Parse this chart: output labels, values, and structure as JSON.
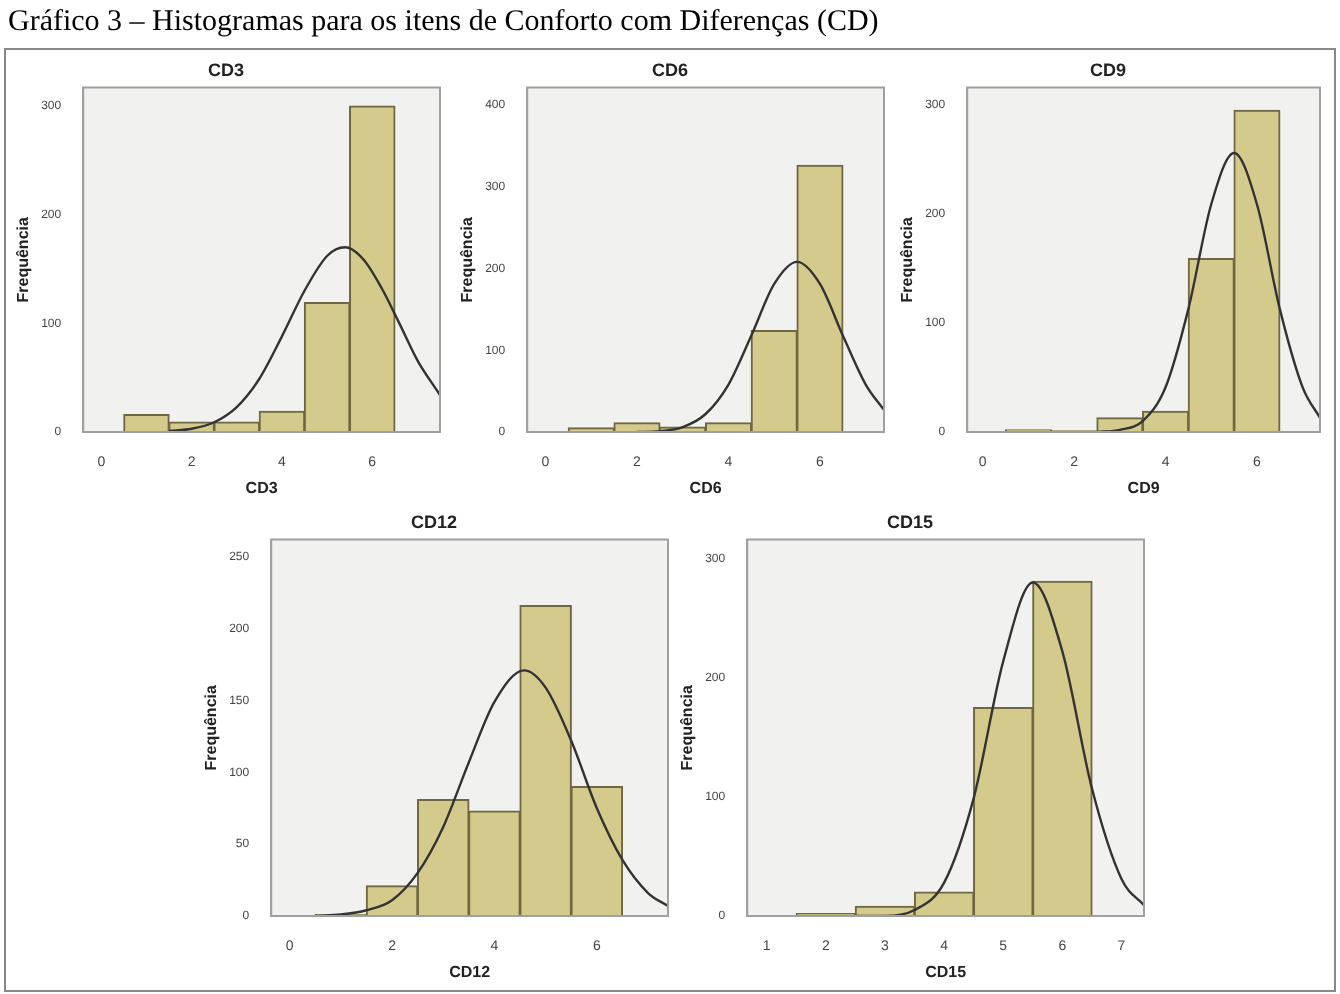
{
  "chart_data": [
    {
      "type": "histogram",
      "title": "CD3",
      "xlabel": "CD3",
      "ylabel": "Frequência",
      "annotations": [
        "Gráfico 3 – Histogramas para os itens de Conforto com Diferenças (CD)"
      ],
      "bins": [
        0.5,
        1.5,
        2.5,
        3.5,
        4.5,
        5.5,
        6.5
      ],
      "xlim": [
        -0.4,
        7.5
      ],
      "xticks": [
        0,
        2,
        4,
        6
      ],
      "ylim": [
        0,
        317
      ],
      "yticks": [
        0,
        100,
        200,
        300
      ],
      "series": [
        {
          "type": "histogram",
          "color": "#d4ca8c",
          "values": [
            16,
            9,
            9,
            19,
            119,
            300
          ]
        },
        {
          "type": "line",
          "color": "#333333",
          "x": [
            1.5,
            2,
            2.5,
            3,
            3.5,
            4,
            4.5,
            5,
            5.4,
            5.8,
            6.2,
            6.6,
            7,
            7.5
          ],
          "values": [
            1,
            3,
            9,
            23,
            49,
            88,
            130,
            162,
            170,
            159,
            133,
            100,
            66,
            34
          ]
        }
      ]
    },
    {
      "type": "histogram",
      "title": "CD6",
      "xlabel": "CD6",
      "ylabel": "Frequência",
      "bins": [
        0.5,
        1.5,
        2.5,
        3.5,
        4.5,
        5.5,
        6.5
      ],
      "xlim": [
        -0.4,
        7.4
      ],
      "xticks": [
        0,
        2,
        4,
        6
      ],
      "ylim": [
        0,
        421
      ],
      "yticks": [
        0,
        100,
        200,
        300,
        400
      ],
      "series": [
        {
          "type": "histogram",
          "color": "#d4ca8c",
          "values": [
            5,
            11,
            6,
            11,
            124,
            326
          ]
        },
        {
          "type": "line",
          "color": "#333333",
          "x": [
            2,
            2.5,
            3,
            3.5,
            4,
            4.5,
            5,
            5.5,
            6,
            6.5,
            7,
            7.4
          ],
          "values": [
            0,
            1,
            6,
            22,
            58,
            118,
            181,
            208,
            181,
            118,
            58,
            27
          ]
        }
      ]
    },
    {
      "type": "histogram",
      "title": "CD9",
      "xlabel": "CD9",
      "ylabel": "Frequência",
      "bins": [
        0.5,
        1.5,
        2.5,
        3.5,
        4.5,
        5.5,
        6.5
      ],
      "xlim": [
        -0.34,
        7.38
      ],
      "xticks": [
        0,
        2,
        4,
        6
      ],
      "ylim": [
        0,
        316
      ],
      "yticks": [
        0,
        100,
        200,
        300
      ],
      "series": [
        {
          "type": "histogram",
          "color": "#d4ca8c",
          "values": [
            2,
            1,
            13,
            19,
            159,
            295
          ]
        },
        {
          "type": "line",
          "color": "#333333",
          "x": [
            2.5,
            3,
            3.5,
            4,
            4.5,
            5,
            5.5,
            6,
            6.5,
            7,
            7.38
          ],
          "values": [
            0,
            2,
            10,
            41,
            113,
            209,
            256,
            209,
            113,
            41,
            13
          ]
        }
      ]
    },
    {
      "type": "histogram",
      "title": "CD12",
      "xlabel": "CD12",
      "ylabel": "Frequência",
      "bins": [
        0.5,
        1.5,
        2.5,
        3.5,
        4.5,
        5.5,
        6.5
      ],
      "xlim": [
        -0.36,
        7.39
      ],
      "xticks": [
        0,
        2,
        4,
        6
      ],
      "ylim": [
        0,
        262
      ],
      "yticks": [
        0,
        50,
        100,
        150,
        200,
        250
      ],
      "series": [
        {
          "type": "histogram",
          "color": "#d4ca8c",
          "values": [
            1,
            21,
            81,
            73,
            216,
            90
          ]
        },
        {
          "type": "line",
          "color": "#333333",
          "x": [
            0.5,
            1,
            1.5,
            2,
            2.5,
            3,
            3.5,
            4,
            4.58,
            5,
            5.5,
            6,
            6.5,
            7,
            7.39
          ],
          "values": [
            0,
            1,
            4,
            11,
            30,
            62,
            107,
            149,
            171,
            159,
            122,
            75,
            39,
            16,
            7
          ]
        }
      ]
    },
    {
      "type": "histogram",
      "title": "CD15",
      "xlabel": "CD15",
      "ylabel": "Frequência",
      "bins": [
        1.5,
        2.5,
        3.5,
        4.5,
        5.5,
        6.5
      ],
      "xlim": [
        0.67,
        7.38
      ],
      "xticks": [
        1,
        2,
        3,
        4,
        5,
        6,
        7
      ],
      "ylim": [
        0,
        316
      ],
      "yticks": [
        0,
        100,
        200,
        300
      ],
      "series": [
        {
          "type": "histogram",
          "color": "#d4ca8c",
          "values": [
            2,
            8,
            20,
            175,
            281
          ]
        },
        {
          "type": "line",
          "color": "#333333",
          "x": [
            2.5,
            3,
            3.5,
            4,
            4.5,
            5,
            5.5,
            6,
            6.5,
            7,
            7.38
          ],
          "values": [
            0,
            0,
            5,
            28,
            99,
            214,
            280,
            222,
            107,
            31,
            9
          ]
        }
      ]
    }
  ]
}
